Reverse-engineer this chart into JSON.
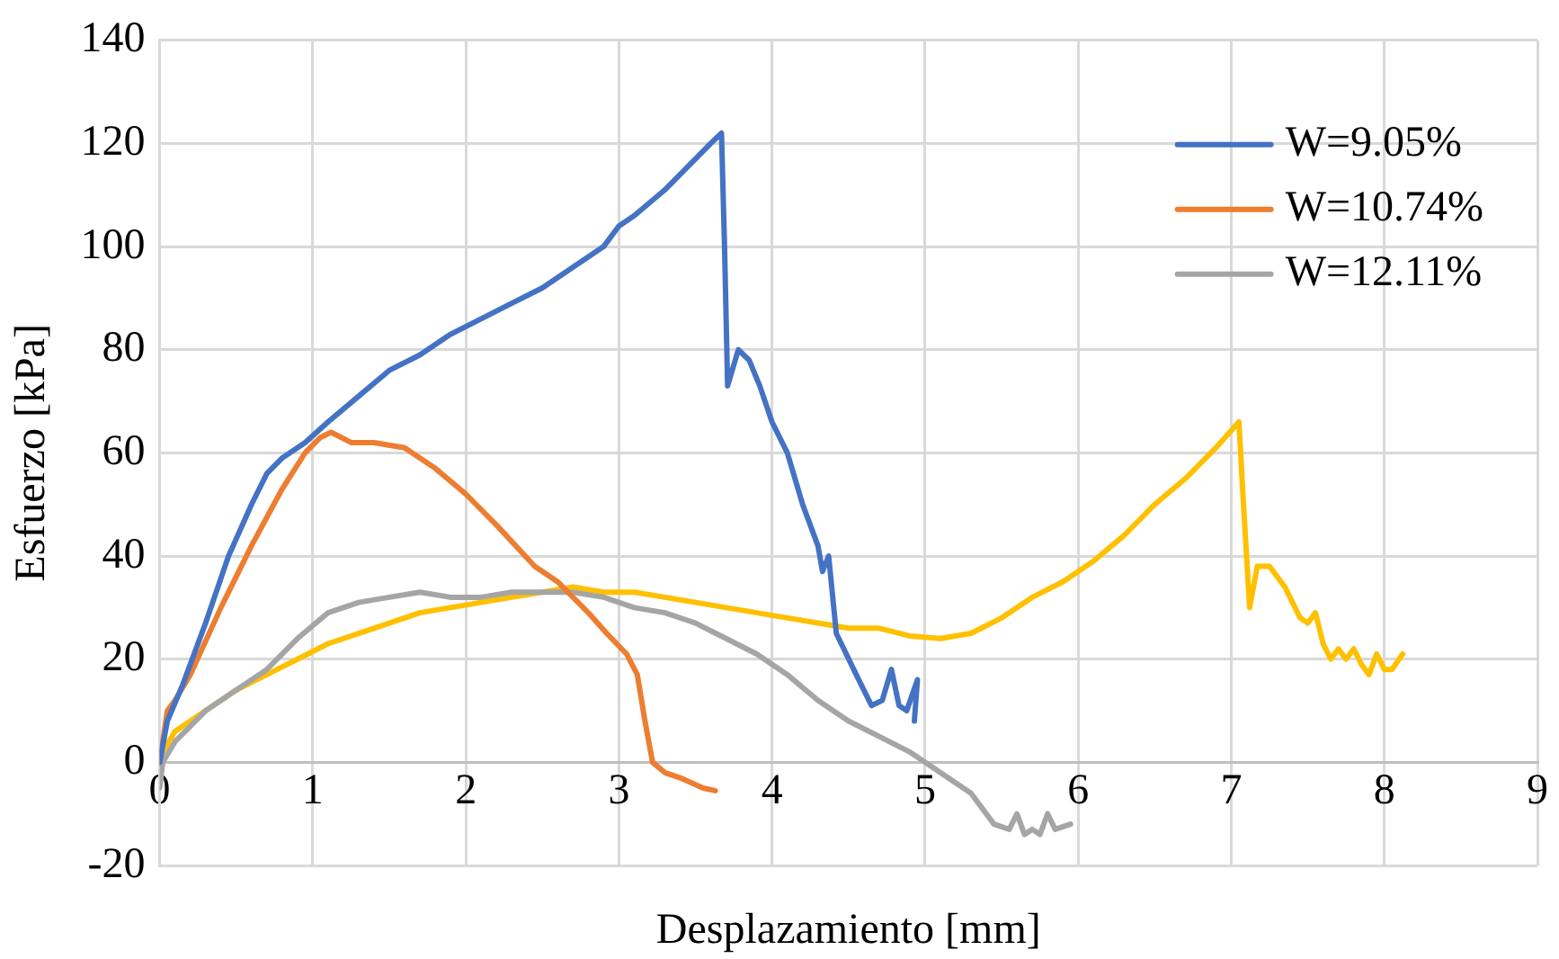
{
  "chart_data": {
    "type": "line",
    "xlabel": "Desplazamiento [mm]",
    "ylabel": "Esfuerzo [kPa]",
    "xlim": [
      0,
      9
    ],
    "xticks": [
      0,
      1,
      2,
      3,
      4,
      5,
      6,
      7,
      8,
      9
    ],
    "ylim": [
      -20,
      140
    ],
    "yticks": [
      -20,
      0,
      20,
      40,
      60,
      80,
      100,
      120,
      140
    ],
    "grid": true,
    "legend": "top right",
    "marker": "none",
    "line_style": "solid",
    "series": [
      {
        "name": "W=9.05%",
        "color": "#4472c4",
        "x": [
          0,
          0.05,
          0.15,
          0.3,
          0.45,
          0.6,
          0.7,
          0.8,
          0.95,
          1.1,
          1.3,
          1.5,
          1.7,
          1.9,
          2.1,
          2.3,
          2.5,
          2.7,
          2.9,
          3.0,
          3.1,
          3.3,
          3.5,
          3.6,
          3.67,
          3.69,
          3.71,
          3.78,
          3.85,
          3.92,
          4.0,
          4.1,
          4.2,
          4.3,
          4.33,
          4.37,
          4.42,
          4.55,
          4.65,
          4.72,
          4.78,
          4.83,
          4.88,
          4.95,
          4.93
        ],
        "values": [
          0,
          8,
          15,
          27,
          40,
          50,
          56,
          59,
          62,
          66,
          71,
          76,
          79,
          83,
          86,
          89,
          92,
          96,
          100,
          104,
          106,
          111,
          117,
          120,
          122,
          100,
          73,
          80,
          78,
          73,
          66,
          60,
          50,
          42,
          37,
          40,
          25,
          17,
          11,
          12,
          18,
          11,
          10,
          16,
          8
        ]
      },
      {
        "name": "W=10.74%",
        "color": "#ed7d31",
        "x": [
          0,
          0.05,
          0.1,
          0.2,
          0.4,
          0.6,
          0.8,
          0.95,
          1.05,
          1.12,
          1.25,
          1.4,
          1.6,
          1.8,
          2.0,
          2.2,
          2.45,
          2.6,
          2.8,
          2.92,
          3.05,
          3.12,
          3.17,
          3.22,
          3.3,
          3.4,
          3.55,
          3.63
        ],
        "values": [
          0,
          10,
          12,
          17,
          30,
          42,
          53,
          60,
          63,
          64,
          62,
          62,
          61,
          57,
          52,
          46,
          38,
          35,
          29,
          25,
          21,
          17,
          8,
          0,
          -2,
          -3,
          -5,
          -5.5
        ]
      },
      {
        "name": "W=12.11%",
        "color": "#a5a5a5",
        "x": [
          0,
          0.02,
          0.1,
          0.3,
          0.5,
          0.7,
          0.9,
          1.1,
          1.3,
          1.5,
          1.7,
          1.9,
          2.1,
          2.3,
          2.5,
          2.7,
          2.9,
          3.1,
          3.3,
          3.5,
          3.7,
          3.9,
          4.1,
          4.3,
          4.5,
          4.7,
          4.9,
          5.1,
          5.3,
          5.45,
          5.55,
          5.6,
          5.65,
          5.7,
          5.75,
          5.8,
          5.85,
          5.95
        ],
        "values": [
          -5,
          0,
          4,
          10,
          14,
          18,
          24,
          29,
          31,
          32,
          33,
          32,
          32,
          33,
          33,
          33,
          32,
          30,
          29,
          27,
          24,
          21,
          17,
          12,
          8,
          5,
          2,
          -2,
          -6,
          -12,
          -13,
          -10,
          -14,
          -13,
          -14,
          -10,
          -13,
          -12
        ]
      },
      {
        "color": "#ffc000",
        "x": [
          0,
          0.1,
          0.3,
          0.5,
          0.7,
          0.9,
          1.1,
          1.3,
          1.5,
          1.7,
          1.9,
          2.1,
          2.3,
          2.5,
          2.7,
          2.9,
          3.1,
          3.3,
          3.5,
          3.7,
          3.9,
          4.1,
          4.3,
          4.5,
          4.7,
          4.9,
          5.1,
          5.3,
          5.5,
          5.7,
          5.9,
          6.1,
          6.3,
          6.5,
          6.7,
          6.9,
          7.05,
          7.08,
          7.12,
          7.17,
          7.25,
          7.35,
          7.45,
          7.5,
          7.55,
          7.6,
          7.65,
          7.7,
          7.75,
          7.8,
          7.85,
          7.9,
          7.95,
          8.0,
          8.05,
          8.12
        ],
        "values": [
          1,
          6,
          10,
          14,
          17,
          20,
          23,
          25,
          27,
          29,
          30,
          31,
          32,
          33,
          34,
          33,
          33,
          32,
          31,
          30,
          29,
          28,
          27,
          26,
          26,
          24.5,
          24,
          25,
          28,
          32,
          35,
          39,
          44,
          50,
          55,
          61,
          66,
          50,
          30,
          38,
          38,
          34,
          28,
          27,
          29,
          23,
          20,
          22,
          20,
          22,
          19,
          17,
          21,
          18,
          18,
          21
        ]
      }
    ]
  }
}
